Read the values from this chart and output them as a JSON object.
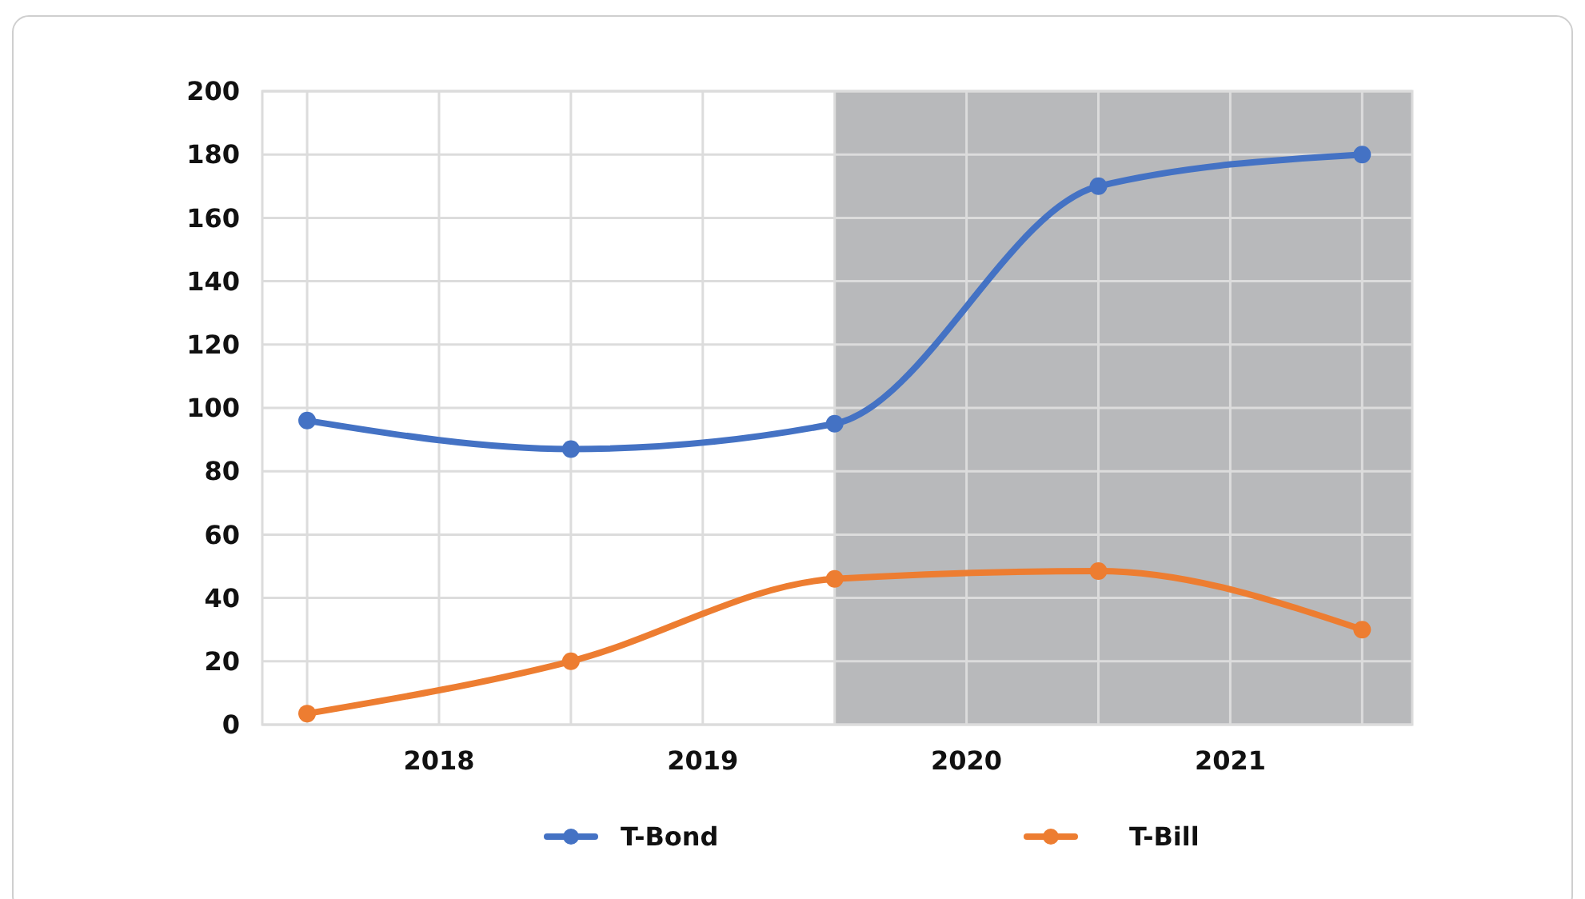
{
  "chart_data": {
    "type": "line",
    "x": [
      2017.5,
      2018.5,
      2019.5,
      2020.5,
      2021.5
    ],
    "series": [
      {
        "name": "T-Bond",
        "color": "#4472c4",
        "values": [
          96,
          87,
          95,
          170,
          180
        ]
      },
      {
        "name": "T-Bill",
        "color": "#ed7d31",
        "values": [
          3.5,
          20,
          46,
          48.5,
          30
        ]
      }
    ],
    "xlim": [
      2017.33,
      2021.69
    ],
    "xticks": [
      {
        "value": 2017.5,
        "label": null
      },
      2018,
      {
        "value": 2018.5,
        "label": null
      },
      2019,
      {
        "value": 2019.5,
        "label": null
      },
      2020,
      {
        "value": 2020.5,
        "label": null
      },
      2021,
      {
        "value": 2021.5,
        "label": null
      }
    ],
    "ylim": [
      0,
      200
    ],
    "yticks": [
      0,
      20,
      40,
      60,
      80,
      100,
      120,
      140,
      160,
      180,
      200
    ],
    "bands": [
      {
        "axis": "x",
        "from": 2019.5,
        "to": 2021.69,
        "color": "#b8b9bb"
      }
    ],
    "grid": true,
    "legend": "bottom",
    "marker": "circle",
    "line_style": "solid"
  }
}
